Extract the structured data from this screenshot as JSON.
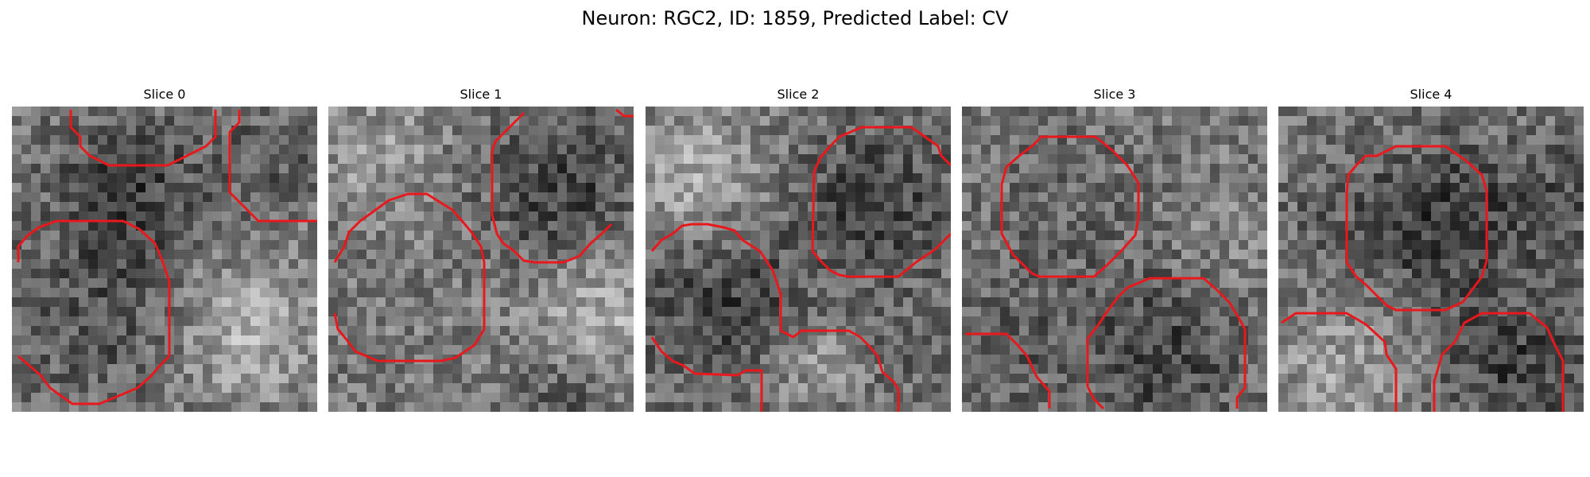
{
  "title": "Neuron: RGC2, ID: 1859, Predicted Label: CV",
  "contour_color": "#e8181c",
  "panels": [
    {
      "label": "Slice 0"
    },
    {
      "label": "Slice 1"
    },
    {
      "label": "Slice 2"
    },
    {
      "label": "Slice 3"
    },
    {
      "label": "Slice 4"
    }
  ]
}
